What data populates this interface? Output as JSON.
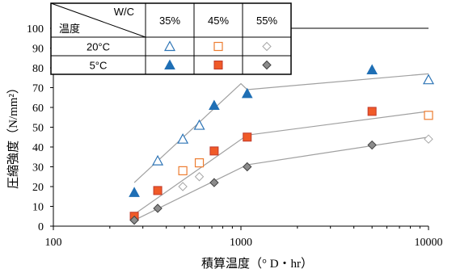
{
  "chart_data": {
    "type": "scatter",
    "xlabel": "積算温度（° D・hr）",
    "ylabel": "圧縮強度（N/mm²）",
    "x_scale": "log",
    "xlim": [
      100,
      10000
    ],
    "ylim": [
      0,
      100
    ],
    "x_ticks": [
      "100",
      "1000",
      "10000"
    ],
    "y_ticks": [
      "0",
      "10",
      "20",
      "30",
      "40",
      "50",
      "60",
      "70",
      "80",
      "90",
      "100"
    ],
    "grid": false,
    "legend_table": {
      "corner_top": "W/C",
      "corner_bottom": "温度",
      "columns": [
        "35%",
        "45%",
        "55%"
      ],
      "rows": [
        "20°C",
        "5°C"
      ]
    },
    "series": [
      {
        "wc": "35%",
        "temp": "20°C",
        "marker": "triangle-open",
        "color": "#2E75B6",
        "x": [
          360,
          490,
          600,
          10000
        ],
        "y": [
          33,
          44,
          51,
          74
        ]
      },
      {
        "wc": "45%",
        "temp": "20°C",
        "marker": "square-open",
        "color": "#ED7D31",
        "x": [
          490,
          600,
          10000
        ],
        "y": [
          28,
          32,
          56
        ]
      },
      {
        "wc": "55%",
        "temp": "20°C",
        "marker": "diamond-open",
        "color": "#A6A6A6",
        "x": [
          490,
          600,
          10000
        ],
        "y": [
          20,
          25,
          44
        ]
      },
      {
        "wc": "35%",
        "temp": "5°C",
        "marker": "triangle-filled",
        "color": "#1F6FB5",
        "x": [
          270,
          720,
          1080,
          5000
        ],
        "y": [
          17,
          61,
          67,
          79
        ]
      },
      {
        "wc": "45%",
        "temp": "5°C",
        "marker": "square-filled",
        "color": "#F05A28",
        "x": [
          270,
          360,
          720,
          1080,
          5000
        ],
        "y": [
          5,
          18,
          38,
          45,
          58
        ]
      },
      {
        "wc": "55%",
        "temp": "5°C",
        "marker": "diamond-filled",
        "color": "#8C8C8C",
        "x": [
          270,
          360,
          720,
          1080,
          5000
        ],
        "y": [
          3,
          9,
          22,
          30,
          41
        ]
      }
    ],
    "trend_lines": [
      {
        "wc": "35%",
        "x": [
          270,
          1000,
          1080,
          10000
        ],
        "y": [
          22,
          72,
          69,
          77
        ]
      },
      {
        "wc": "45%",
        "x": [
          270,
          1080,
          10000
        ],
        "y": [
          6,
          46,
          58
        ]
      },
      {
        "wc": "55%",
        "x": [
          270,
          1080,
          10000
        ],
        "y": [
          3,
          31,
          45
        ]
      }
    ],
    "trend_line_color": "#A0A0A0"
  }
}
